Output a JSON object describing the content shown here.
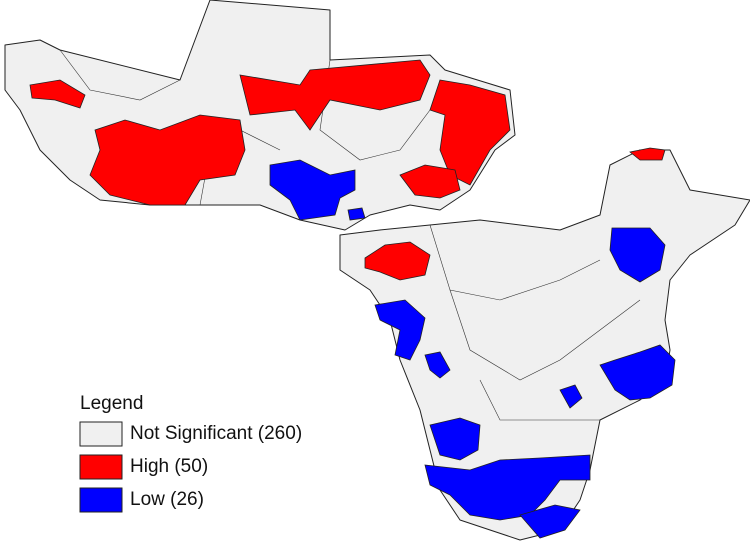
{
  "legend": {
    "title": "Legend",
    "items": [
      {
        "label": "Not Significant (260)",
        "color": "#f0f0f0"
      },
      {
        "label": "High (50)",
        "color": "#ff0000"
      },
      {
        "label": "Low (26)",
        "color": "#0000ff"
      }
    ]
  }
}
